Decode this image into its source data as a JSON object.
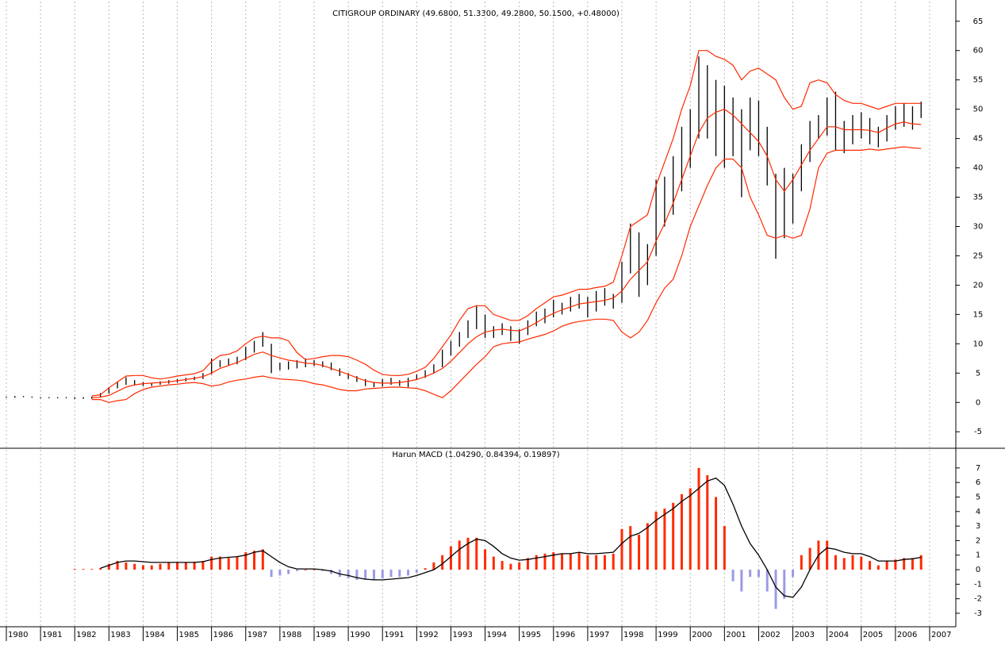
{
  "chart_data": [
    {
      "type": "hilo",
      "title": "CITIGROUP ORDINARY (49.6800, 51.3300, 49.2800, 50.1500, +0.48000)",
      "x": [
        1980,
        1980.25,
        1980.5,
        1980.75,
        1981,
        1981.25,
        1981.5,
        1981.75,
        1982,
        1982.25,
        1982.5,
        1982.75,
        1983,
        1983.25,
        1983.5,
        1983.75,
        1984,
        1984.25,
        1984.5,
        1984.75,
        1985,
        1985.25,
        1985.5,
        1985.75,
        1986,
        1986.25,
        1986.5,
        1986.75,
        1987,
        1987.25,
        1987.5,
        1987.75,
        1988,
        1988.25,
        1988.5,
        1988.75,
        1989,
        1989.25,
        1989.5,
        1989.75,
        1990,
        1990.25,
        1990.5,
        1990.75,
        1991,
        1991.25,
        1991.5,
        1991.75,
        1992,
        1992.25,
        1992.5,
        1992.75,
        1993,
        1993.25,
        1993.5,
        1993.75,
        1994,
        1994.25,
        1994.5,
        1994.75,
        1995,
        1995.25,
        1995.5,
        1995.75,
        1996,
        1996.25,
        1996.5,
        1996.75,
        1997,
        1997.25,
        1997.5,
        1997.75,
        1998,
        1998.25,
        1998.5,
        1998.75,
        1999,
        1999.25,
        1999.5,
        1999.75,
        2000,
        2000.25,
        2000.5,
        2000.75,
        2001,
        2001.25,
        2001.5,
        2001.75,
        2002,
        2002.25,
        2002.5,
        2002.75,
        2003,
        2003.25,
        2003.5,
        2003.75,
        2004,
        2004.25,
        2004.5,
        2004.75,
        2005,
        2005.25,
        2005.5,
        2005.75,
        2006,
        2006.25,
        2006.5,
        2006.75
      ],
      "high": [
        1.0,
        1.1,
        1.1,
        1.0,
        0.9,
        0.9,
        0.9,
        0.9,
        0.9,
        0.9,
        1.0,
        1.6,
        2.5,
        3.5,
        4.3,
        3.8,
        3.5,
        3.3,
        3.6,
        3.8,
        4.0,
        4.2,
        4.4,
        5.0,
        7.5,
        7.2,
        7.5,
        7.8,
        9.5,
        10.5,
        12.0,
        10.0,
        6.8,
        7.0,
        7.2,
        7.5,
        7.2,
        7.0,
        6.8,
        5.8,
        5.0,
        4.5,
        4.0,
        3.5,
        4.0,
        4.2,
        3.8,
        4.2,
        4.8,
        5.5,
        6.5,
        9.0,
        10.5,
        12.0,
        14.0,
        16.5,
        15.0,
        13.0,
        13.5,
        13.0,
        12.5,
        14.0,
        15.5,
        16.0,
        17.5,
        17.0,
        18.0,
        18.5,
        18.0,
        19.0,
        19.5,
        18.5,
        24.0,
        30.5,
        29.0,
        27.0,
        38.0,
        38.5,
        42.0,
        47.0,
        50.0,
        59.0,
        57.5,
        55.0,
        54.0,
        52.0,
        50.0,
        52.0,
        51.5,
        47.0,
        39.0,
        40.0,
        39.0,
        44.0,
        48.0,
        49.0,
        52.0,
        53.0,
        48.0,
        49.0,
        49.5,
        48.5,
        47.0,
        49.0,
        50.5,
        51.0,
        50.5,
        51.3
      ],
      "low": [
        0.8,
        0.8,
        0.9,
        0.8,
        0.7,
        0.7,
        0.7,
        0.7,
        0.6,
        0.6,
        0.6,
        0.9,
        1.5,
        2.4,
        3.0,
        2.9,
        2.8,
        2.8,
        3.0,
        3.2,
        3.4,
        3.6,
        3.8,
        4.0,
        4.8,
        6.0,
        6.3,
        6.5,
        7.2,
        8.5,
        9.5,
        5.0,
        5.5,
        5.6,
        5.8,
        6.0,
        6.2,
        6.0,
        5.5,
        4.5,
        4.0,
        3.5,
        2.8,
        2.6,
        2.7,
        3.0,
        2.8,
        2.6,
        3.8,
        4.2,
        5.0,
        6.0,
        8.0,
        9.5,
        11.0,
        12.5,
        11.0,
        11.0,
        11.5,
        10.5,
        10.0,
        11.5,
        13.0,
        13.5,
        14.5,
        15.0,
        15.5,
        16.0,
        14.5,
        15.5,
        16.5,
        16.0,
        17.0,
        22.0,
        18.0,
        20.0,
        25.0,
        30.0,
        32.0,
        36.0,
        40.0,
        45.0,
        45.0,
        42.0,
        40.0,
        42.0,
        35.0,
        43.0,
        42.0,
        37.0,
        24.5,
        28.0,
        30.5,
        36.0,
        41.0,
        45.0,
        45.5,
        43.0,
        42.5,
        44.0,
        45.0,
        44.0,
        43.5,
        44.5,
        46.5,
        47.0,
        46.5,
        48.5
      ],
      "bar_color": "#000000",
      "band_color": "#ff2a00",
      "upper": [
        null,
        null,
        null,
        null,
        null,
        null,
        null,
        null,
        null,
        null,
        1.1,
        1.3,
        2.5,
        3.5,
        4.5,
        4.6,
        4.6,
        4.2,
        4.0,
        4.2,
        4.5,
        4.7,
        4.9,
        5.4,
        7.0,
        8.0,
        8.2,
        8.8,
        10.0,
        11.0,
        11.3,
        11.0,
        11.0,
        10.5,
        8.5,
        7.3,
        7.5,
        7.8,
        8.0,
        8.0,
        7.8,
        7.2,
        6.5,
        5.5,
        4.8,
        4.6,
        4.6,
        4.8,
        5.3,
        6.0,
        7.5,
        9.5,
        11.5,
        14.0,
        16.0,
        16.5,
        16.5,
        15.0,
        14.5,
        14.0,
        14.0,
        14.8,
        16.0,
        17.0,
        18.0,
        18.3,
        18.8,
        19.3,
        19.3,
        19.6,
        19.8,
        20.5,
        25.0,
        30.0,
        31.0,
        32.0,
        37.0,
        41.0,
        45.0,
        50.0,
        54.0,
        60.0,
        60.0,
        59.0,
        58.5,
        57.5,
        55.0,
        56.5,
        57.0,
        56.0,
        55.0,
        52.0,
        50.0,
        50.5,
        54.5,
        55.0,
        54.5,
        52.5,
        51.5,
        51.0,
        51.0,
        50.5,
        50.0,
        50.5,
        51.0,
        51.0,
        51.0,
        51.0
      ],
      "middle": [
        null,
        null,
        null,
        null,
        null,
        null,
        null,
        null,
        null,
        null,
        0.8,
        0.9,
        1.2,
        1.9,
        2.6,
        3.0,
        3.2,
        3.3,
        3.4,
        3.5,
        3.7,
        3.9,
        4.1,
        4.4,
        5.0,
        5.8,
        6.3,
        6.8,
        7.5,
        8.2,
        8.6,
        8.0,
        7.6,
        7.2,
        7.0,
        6.7,
        6.6,
        6.3,
        5.8,
        5.3,
        4.8,
        4.2,
        3.7,
        3.4,
        3.3,
        3.3,
        3.4,
        3.6,
        3.9,
        4.4,
        5.0,
        5.8,
        7.0,
        8.5,
        10.0,
        11.2,
        12.0,
        12.3,
        12.5,
        12.3,
        12.2,
        12.8,
        13.6,
        14.5,
        15.2,
        15.8,
        16.3,
        16.8,
        17.0,
        17.2,
        17.4,
        17.8,
        19.0,
        21.0,
        22.5,
        24.0,
        27.5,
        30.5,
        34.0,
        38.0,
        42.0,
        46.0,
        48.5,
        49.5,
        50.0,
        49.0,
        47.5,
        46.0,
        44.5,
        42.0,
        38.0,
        36.0,
        38.0,
        40.5,
        43.0,
        45.0,
        47.0,
        47.0,
        46.5,
        46.5,
        46.5,
        46.4,
        46.0,
        46.8,
        47.5,
        47.8,
        47.5,
        47.4
      ],
      "lower": [
        null,
        null,
        null,
        null,
        null,
        null,
        null,
        null,
        null,
        null,
        0.5,
        0.5,
        0.0,
        0.3,
        0.5,
        1.5,
        2.2,
        2.6,
        2.8,
        3.0,
        3.1,
        3.3,
        3.4,
        3.2,
        2.8,
        3.0,
        3.5,
        3.8,
        4.0,
        4.3,
        4.5,
        4.2,
        4.0,
        3.9,
        3.8,
        3.6,
        3.2,
        3.0,
        2.6,
        2.2,
        2.0,
        2.0,
        2.3,
        2.4,
        2.5,
        2.6,
        2.6,
        2.5,
        2.4,
        2.0,
        1.4,
        0.8,
        2.0,
        3.5,
        5.0,
        6.5,
        7.8,
        9.5,
        10.0,
        10.2,
        10.3,
        10.8,
        11.2,
        11.6,
        12.2,
        13.0,
        13.5,
        13.8,
        14.0,
        14.2,
        14.2,
        14.0,
        12.0,
        11.0,
        12.0,
        14.0,
        17.0,
        19.5,
        21.0,
        25.0,
        30.0,
        33.5,
        37.0,
        40.0,
        41.5,
        41.5,
        40.0,
        35.0,
        32.0,
        28.5,
        28.0,
        28.5,
        28.0,
        28.5,
        33.0,
        40.0,
        42.5,
        43.0,
        43.0,
        43.0,
        43.0,
        43.2,
        43.0,
        43.2,
        43.4,
        43.6,
        43.4,
        43.3
      ],
      "xlim": [
        1980,
        2007
      ],
      "xticks": [
        1980,
        1981,
        1982,
        1983,
        1984,
        1985,
        1986,
        1987,
        1988,
        1989,
        1990,
        1991,
        1992,
        1993,
        1994,
        1995,
        1996,
        1997,
        1998,
        1999,
        2000,
        2001,
        2002,
        2003,
        2004,
        2005,
        2006,
        2007
      ],
      "ylim": [
        -7,
        67
      ],
      "yticks": [
        -5,
        0,
        5,
        10,
        15,
        20,
        25,
        30,
        35,
        40,
        45,
        50,
        55,
        60,
        65
      ],
      "grid": true
    },
    {
      "type": "macd",
      "title": "Harun MACD (1.04290, 0.84394, 0.19897)",
      "x": [
        1980,
        1980.25,
        1980.5,
        1980.75,
        1981,
        1981.25,
        1981.5,
        1981.75,
        1982,
        1982.25,
        1982.5,
        1982.75,
        1983,
        1983.25,
        1983.5,
        1983.75,
        1984,
        1984.25,
        1984.5,
        1984.75,
        1985,
        1985.25,
        1985.5,
        1985.75,
        1986,
        1986.25,
        1986.5,
        1986.75,
        1987,
        1987.25,
        1987.5,
        1987.75,
        1988,
        1988.25,
        1988.5,
        1988.75,
        1989,
        1989.25,
        1989.5,
        1989.75,
        1990,
        1990.25,
        1990.5,
        1990.75,
        1991,
        1991.25,
        1991.5,
        1991.75,
        1992,
        1992.25,
        1992.5,
        1992.75,
        1993,
        1993.25,
        1993.5,
        1993.75,
        1994,
        1994.25,
        1994.5,
        1994.75,
        1995,
        1995.25,
        1995.5,
        1995.75,
        1996,
        1996.25,
        1996.5,
        1996.75,
        1997,
        1997.25,
        1997.5,
        1997.75,
        1998,
        1998.25,
        1998.5,
        1998.75,
        1999,
        1999.25,
        1999.5,
        1999.75,
        2000,
        2000.25,
        2000.5,
        2000.75,
        2001,
        2001.25,
        2001.5,
        2001.75,
        2002,
        2002.25,
        2002.5,
        2002.75,
        2003,
        2003.25,
        2003.5,
        2003.75,
        2004,
        2004.25,
        2004.5,
        2004.75,
        2005,
        2005.25,
        2005.5,
        2005.75,
        2006,
        2006.25,
        2006.5,
        2006.75
      ],
      "macd": [
        null,
        null,
        null,
        null,
        null,
        null,
        null,
        null,
        null,
        null,
        null,
        0.1,
        0.3,
        0.5,
        0.6,
        0.6,
        0.55,
        0.5,
        0.5,
        0.5,
        0.5,
        0.5,
        0.5,
        0.55,
        0.7,
        0.8,
        0.85,
        0.9,
        1.0,
        1.2,
        1.3,
        0.9,
        0.5,
        0.2,
        0.05,
        0.05,
        0.05,
        0.0,
        -0.1,
        -0.3,
        -0.4,
        -0.55,
        -0.65,
        -0.7,
        -0.7,
        -0.65,
        -0.6,
        -0.55,
        -0.4,
        -0.2,
        0.0,
        0.4,
        0.9,
        1.4,
        1.8,
        2.1,
        2.0,
        1.6,
        1.1,
        0.8,
        0.65,
        0.7,
        0.8,
        0.9,
        1.0,
        1.1,
        1.1,
        1.2,
        1.1,
        1.1,
        1.15,
        1.2,
        1.8,
        2.3,
        2.5,
        2.9,
        3.4,
        3.8,
        4.2,
        4.7,
        5.1,
        5.6,
        6.1,
        6.3,
        5.8,
        4.5,
        3.0,
        1.8,
        1.0,
        0.0,
        -1.2,
        -1.8,
        -1.9,
        -1.2,
        0.0,
        1.0,
        1.5,
        1.4,
        1.2,
        1.1,
        1.1,
        0.9,
        0.6,
        0.6,
        0.6,
        0.7,
        0.75,
        0.85
      ],
      "histogram": [
        null,
        null,
        null,
        null,
        null,
        null,
        null,
        null,
        0.05,
        0.05,
        0.05,
        0.1,
        0.4,
        0.6,
        0.5,
        0.4,
        0.3,
        0.3,
        0.4,
        0.5,
        0.5,
        0.5,
        0.55,
        0.6,
        0.9,
        0.9,
        0.8,
        0.9,
        1.2,
        1.3,
        1.4,
        -0.5,
        -0.4,
        -0.3,
        -0.1,
        0.0,
        0.0,
        -0.1,
        -0.3,
        -0.5,
        -0.6,
        -0.7,
        -0.7,
        -0.7,
        -0.6,
        -0.5,
        -0.5,
        -0.4,
        -0.2,
        0.1,
        0.5,
        1.0,
        1.6,
        2.0,
        2.2,
        2.2,
        1.4,
        0.9,
        0.6,
        0.4,
        0.5,
        0.8,
        1.0,
        1.1,
        1.2,
        1.1,
        1.1,
        1.2,
        1.0,
        1.0,
        1.0,
        1.1,
        2.8,
        3.0,
        2.4,
        3.2,
        4.0,
        4.2,
        4.6,
        5.2,
        5.6,
        7.0,
        6.5,
        5.0,
        3.0,
        -0.8,
        -1.5,
        -0.5,
        -0.5,
        -1.5,
        -2.7,
        -2.0,
        -0.5,
        1.0,
        1.5,
        2.0,
        2.0,
        1.0,
        0.8,
        1.0,
        0.9,
        0.6,
        0.3,
        0.6,
        0.7,
        0.8,
        0.8,
        1.0
      ],
      "line_color": "#000000",
      "positive_color": "#ff2a00",
      "negative_color": "#9a9ae6",
      "xlim": [
        1980,
        2007
      ],
      "xticks": [
        1980,
        1981,
        1982,
        1983,
        1984,
        1985,
        1986,
        1987,
        1988,
        1989,
        1990,
        1991,
        1992,
        1993,
        1994,
        1995,
        1996,
        1997,
        1998,
        1999,
        2000,
        2001,
        2002,
        2003,
        2004,
        2005,
        2006,
        2007
      ],
      "ylim": [
        -3.6,
        7.7
      ],
      "yticks": [
        -3,
        -2,
        -1,
        0,
        1,
        2,
        3,
        4,
        5,
        6,
        7
      ],
      "grid": true
    }
  ]
}
